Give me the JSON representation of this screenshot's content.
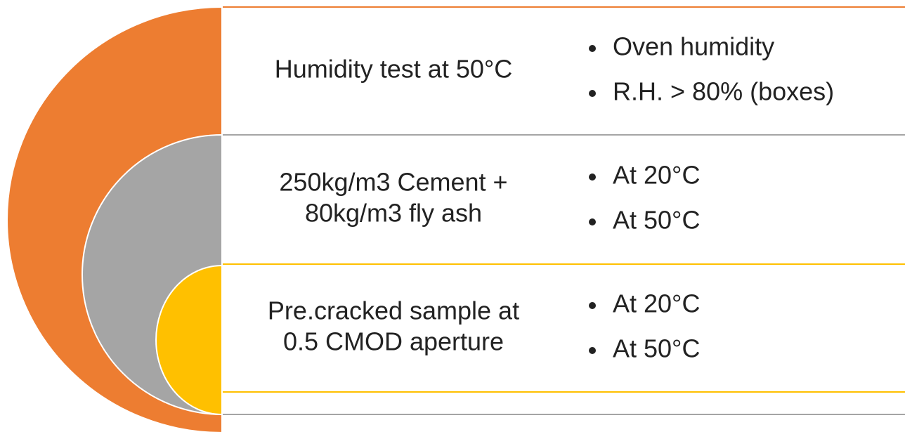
{
  "rows": [
    {
      "label": [
        "Humidity test at 50°C"
      ],
      "bullets": [
        "Oven humidity",
        "R.H. > 80% (boxes)"
      ]
    },
    {
      "label": [
        "250kg/m3 Cement +",
        "80kg/m3 fly ash"
      ],
      "bullets": [
        "At 20°C",
        "At 50°C"
      ]
    },
    {
      "label": [
        "Pre.cracked sample at",
        "0.5 CMOD aperture"
      ],
      "bullets": [
        "At 20°C",
        "At 50°C"
      ]
    }
  ]
}
